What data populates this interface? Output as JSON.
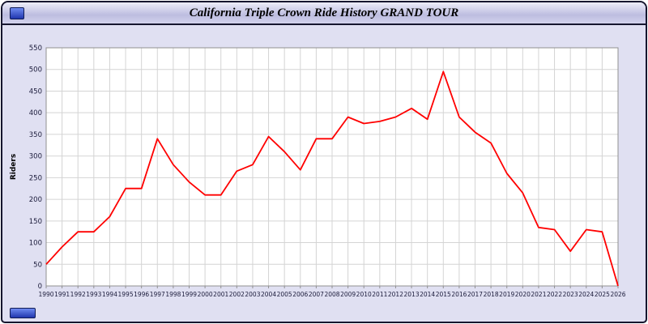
{
  "window": {
    "title": "California Triple Crown Ride History GRAND TOUR"
  },
  "chart_data": {
    "type": "line",
    "title": "California Triple Crown Ride History GRAND TOUR",
    "xlabel": "",
    "ylabel": "Riders",
    "x": [
      1990,
      1991,
      1992,
      1993,
      1994,
      1995,
      1996,
      1997,
      1998,
      1999,
      2000,
      2001,
      2002,
      2003,
      2004,
      2005,
      2006,
      2007,
      2008,
      2009,
      2010,
      2011,
      2012,
      2013,
      2014,
      2015,
      2016,
      2017,
      2018,
      2019,
      2020,
      2021,
      2022,
      2023,
      2024,
      2025,
      2026
    ],
    "series": [
      {
        "name": "Riders",
        "color": "#ff0000",
        "values": [
          50,
          90,
          125,
          125,
          160,
          225,
          225,
          340,
          280,
          240,
          210,
          210,
          265,
          280,
          345,
          310,
          268,
          340,
          340,
          390,
          375,
          380,
          390,
          410,
          385,
          495,
          390,
          355,
          330,
          260,
          215,
          135,
          130,
          80,
          130,
          125,
          0
        ]
      }
    ],
    "ylim": [
      0,
      550
    ],
    "ytick_step": 50,
    "grid": true,
    "legend": "none",
    "colors": {
      "plot_background": "#ffffff",
      "grid_line": "#d4d4d4",
      "axis_text": "#1a1a3a",
      "plot_border": "#909090"
    }
  }
}
